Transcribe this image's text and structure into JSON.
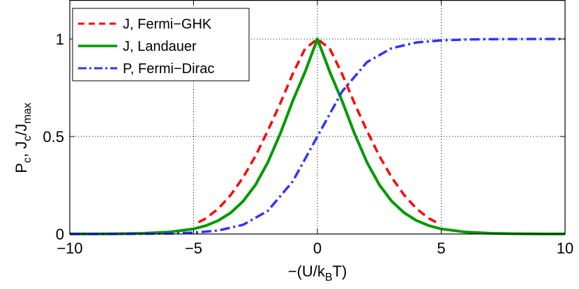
{
  "chart_data": {
    "type": "line",
    "title": "",
    "xlabel": {
      "text": "−(U/k",
      "sub": "B",
      "tail": "T)"
    },
    "ylabel": {
      "p": "P",
      "p_sub": "c",
      "sep": ", J",
      "j_sub": "c",
      "slash": "/J",
      "max_sub": "max"
    },
    "xlim": [
      -10,
      10
    ],
    "ylim": [
      0,
      1.2
    ],
    "xticks": [
      -10,
      -5,
      0,
      5,
      10
    ],
    "xtick_labels": [
      "−10",
      "−5",
      "0",
      "5",
      "10"
    ],
    "yticks": [
      0,
      0.5,
      1
    ],
    "ytick_labels": [
      "0",
      "0.5",
      "1"
    ],
    "grid": true,
    "legend_position": "top-left",
    "series": [
      {
        "name": "J, Fermi−GHK",
        "color": "#ff0000",
        "style": "dashed",
        "x": [
          -4.8,
          -4.5,
          -4,
          -3.5,
          -3,
          -2.5,
          -2,
          -1.5,
          -1,
          -0.5,
          0,
          0.5,
          1,
          1.5,
          2,
          2.5,
          3,
          3.5,
          4,
          4.5,
          4.8
        ],
        "y": [
          0.06,
          0.08,
          0.13,
          0.2,
          0.29,
          0.4,
          0.53,
          0.67,
          0.82,
          0.95,
          1.0,
          0.95,
          0.82,
          0.67,
          0.53,
          0.4,
          0.29,
          0.2,
          0.13,
          0.08,
          0.06
        ]
      },
      {
        "name": "J, Landauer",
        "color": "#009900",
        "style": "solid",
        "x": [
          -10,
          -9,
          -8,
          -7,
          -6,
          -5,
          -4.5,
          -4,
          -3.5,
          -3,
          -2.5,
          -2,
          -1.5,
          -1,
          -0.5,
          0,
          0.5,
          1,
          1.5,
          2,
          2.5,
          3,
          3.5,
          4,
          4.5,
          5,
          6,
          7,
          8,
          9,
          10
        ],
        "y": [
          0.0002,
          0.0005,
          0.0013,
          0.0036,
          0.0098,
          0.026,
          0.043,
          0.069,
          0.109,
          0.168,
          0.252,
          0.368,
          0.515,
          0.681,
          0.831,
          1.0,
          0.831,
          0.681,
          0.515,
          0.368,
          0.252,
          0.168,
          0.109,
          0.069,
          0.043,
          0.026,
          0.0098,
          0.0036,
          0.0013,
          0.0005,
          0.0002
        ]
      },
      {
        "name": "P, Fermi−Dirac",
        "color": "#3333ff",
        "style": "dashdot",
        "x": [
          -10,
          -9,
          -8,
          -7,
          -6,
          -5,
          -4,
          -3,
          -2,
          -1,
          0,
          1,
          2,
          3,
          4,
          5,
          6,
          7,
          8,
          9,
          10
        ],
        "y": [
          5e-05,
          0.0001,
          0.0003,
          0.0009,
          0.0025,
          0.0067,
          0.018,
          0.047,
          0.119,
          0.269,
          0.5,
          0.731,
          0.881,
          0.953,
          0.982,
          0.993,
          0.9975,
          0.9991,
          0.9997,
          0.9999,
          1.0
        ]
      }
    ]
  }
}
